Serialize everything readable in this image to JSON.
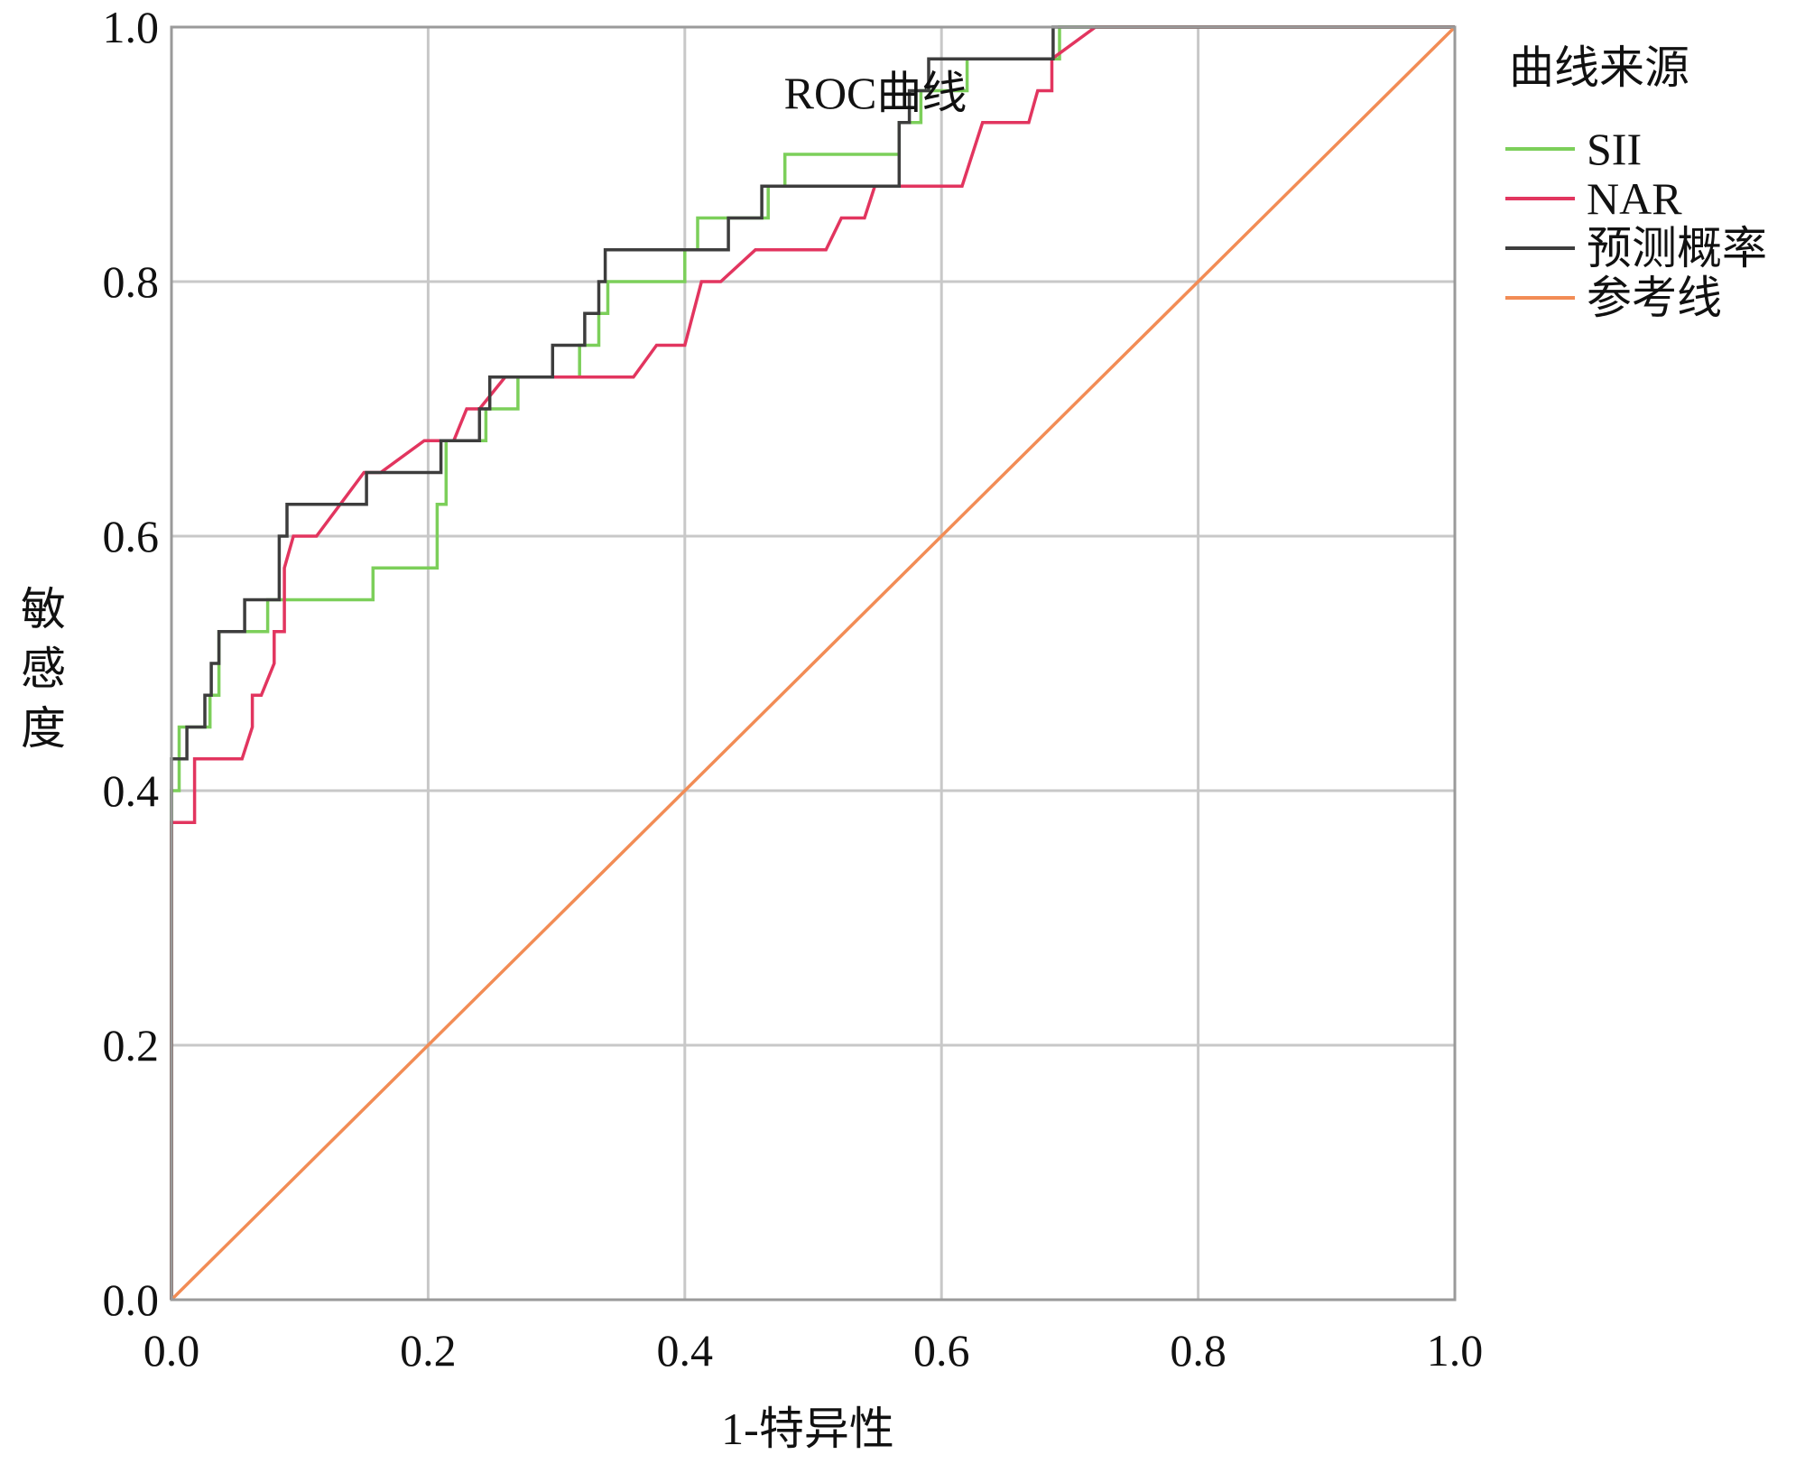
{
  "chart_data": {
    "type": "line",
    "title": "ROC曲线",
    "xlabel": "1-特异性",
    "ylabel": "敏感度",
    "xlim": [
      0,
      1
    ],
    "ylim": [
      0,
      1
    ],
    "x_ticks": [
      "0.0",
      "0.2",
      "0.4",
      "0.6",
      "0.8",
      "1.0"
    ],
    "y_ticks": [
      "0.0",
      "0.2",
      "0.4",
      "0.6",
      "0.8",
      "1.0"
    ],
    "grid": true,
    "legend": {
      "title": "曲线来源",
      "position": "right"
    },
    "series": [
      {
        "name": "SII",
        "color": "#7ccf5a",
        "style": "step",
        "points": [
          [
            0,
            0
          ],
          [
            0,
            0.4
          ],
          [
            0.006,
            0.4
          ],
          [
            0.006,
            0.45
          ],
          [
            0.03,
            0.45
          ],
          [
            0.03,
            0.475
          ],
          [
            0.037,
            0.475
          ],
          [
            0.037,
            0.525
          ],
          [
            0.075,
            0.525
          ],
          [
            0.075,
            0.55
          ],
          [
            0.157,
            0.55
          ],
          [
            0.157,
            0.575
          ],
          [
            0.207,
            0.575
          ],
          [
            0.207,
            0.625
          ],
          [
            0.214,
            0.625
          ],
          [
            0.214,
            0.675
          ],
          [
            0.245,
            0.675
          ],
          [
            0.245,
            0.7
          ],
          [
            0.27,
            0.7
          ],
          [
            0.27,
            0.725
          ],
          [
            0.318,
            0.725
          ],
          [
            0.318,
            0.75
          ],
          [
            0.333,
            0.75
          ],
          [
            0.333,
            0.775
          ],
          [
            0.34,
            0.775
          ],
          [
            0.34,
            0.8
          ],
          [
            0.4,
            0.8
          ],
          [
            0.4,
            0.825
          ],
          [
            0.41,
            0.825
          ],
          [
            0.41,
            0.85
          ],
          [
            0.465,
            0.85
          ],
          [
            0.465,
            0.875
          ],
          [
            0.478,
            0.875
          ],
          [
            0.478,
            0.9
          ],
          [
            0.567,
            0.9
          ],
          [
            0.567,
            0.925
          ],
          [
            0.584,
            0.925
          ],
          [
            0.584,
            0.95
          ],
          [
            0.62,
            0.95
          ],
          [
            0.62,
            0.975
          ],
          [
            0.692,
            0.975
          ],
          [
            0.692,
            1.0
          ],
          [
            1.0,
            1.0
          ]
        ]
      },
      {
        "name": "NAR",
        "color": "#e2355f",
        "style": "step",
        "points": [
          [
            0,
            0
          ],
          [
            0,
            0.375
          ],
          [
            0.018,
            0.375
          ],
          [
            0.018,
            0.425
          ],
          [
            0.055,
            0.425
          ],
          [
            0.063,
            0.45
          ],
          [
            0.063,
            0.475
          ],
          [
            0.07,
            0.475
          ],
          [
            0.08,
            0.5
          ],
          [
            0.08,
            0.525
          ],
          [
            0.088,
            0.525
          ],
          [
            0.088,
            0.575
          ],
          [
            0.095,
            0.6
          ],
          [
            0.113,
            0.6
          ],
          [
            0.15,
            0.65
          ],
          [
            0.163,
            0.65
          ],
          [
            0.197,
            0.675
          ],
          [
            0.22,
            0.675
          ],
          [
            0.23,
            0.7
          ],
          [
            0.24,
            0.7
          ],
          [
            0.26,
            0.725
          ],
          [
            0.36,
            0.725
          ],
          [
            0.378,
            0.75
          ],
          [
            0.4,
            0.75
          ],
          [
            0.413,
            0.8
          ],
          [
            0.428,
            0.8
          ],
          [
            0.455,
            0.825
          ],
          [
            0.51,
            0.825
          ],
          [
            0.522,
            0.85
          ],
          [
            0.54,
            0.85
          ],
          [
            0.548,
            0.875
          ],
          [
            0.616,
            0.875
          ],
          [
            0.632,
            0.925
          ],
          [
            0.668,
            0.925
          ],
          [
            0.675,
            0.95
          ],
          [
            0.686,
            0.95
          ],
          [
            0.686,
            0.975
          ],
          [
            0.72,
            1.0
          ],
          [
            1.0,
            1.0
          ]
        ]
      },
      {
        "name": "预测概率",
        "color": "#3d3d3d",
        "style": "step",
        "points": [
          [
            0,
            0
          ],
          [
            0,
            0.425
          ],
          [
            0.012,
            0.425
          ],
          [
            0.012,
            0.45
          ],
          [
            0.026,
            0.45
          ],
          [
            0.026,
            0.475
          ],
          [
            0.031,
            0.475
          ],
          [
            0.031,
            0.5
          ],
          [
            0.037,
            0.5
          ],
          [
            0.037,
            0.525
          ],
          [
            0.057,
            0.525
          ],
          [
            0.057,
            0.55
          ],
          [
            0.084,
            0.55
          ],
          [
            0.084,
            0.6
          ],
          [
            0.09,
            0.6
          ],
          [
            0.09,
            0.625
          ],
          [
            0.152,
            0.625
          ],
          [
            0.152,
            0.65
          ],
          [
            0.21,
            0.65
          ],
          [
            0.21,
            0.675
          ],
          [
            0.24,
            0.675
          ],
          [
            0.24,
            0.7
          ],
          [
            0.248,
            0.7
          ],
          [
            0.248,
            0.725
          ],
          [
            0.297,
            0.725
          ],
          [
            0.297,
            0.75
          ],
          [
            0.322,
            0.75
          ],
          [
            0.322,
            0.775
          ],
          [
            0.333,
            0.775
          ],
          [
            0.333,
            0.8
          ],
          [
            0.338,
            0.8
          ],
          [
            0.338,
            0.825
          ],
          [
            0.434,
            0.825
          ],
          [
            0.434,
            0.85
          ],
          [
            0.46,
            0.85
          ],
          [
            0.46,
            0.875
          ],
          [
            0.567,
            0.875
          ],
          [
            0.567,
            0.925
          ],
          [
            0.575,
            0.925
          ],
          [
            0.575,
            0.95
          ],
          [
            0.59,
            0.95
          ],
          [
            0.59,
            0.975
          ],
          [
            0.687,
            0.975
          ],
          [
            0.687,
            1.0
          ],
          [
            1.0,
            1.0
          ]
        ]
      },
      {
        "name": "参考线",
        "color": "#f28c55",
        "style": "line",
        "points": [
          [
            0,
            0
          ],
          [
            1,
            1
          ]
        ]
      }
    ]
  }
}
